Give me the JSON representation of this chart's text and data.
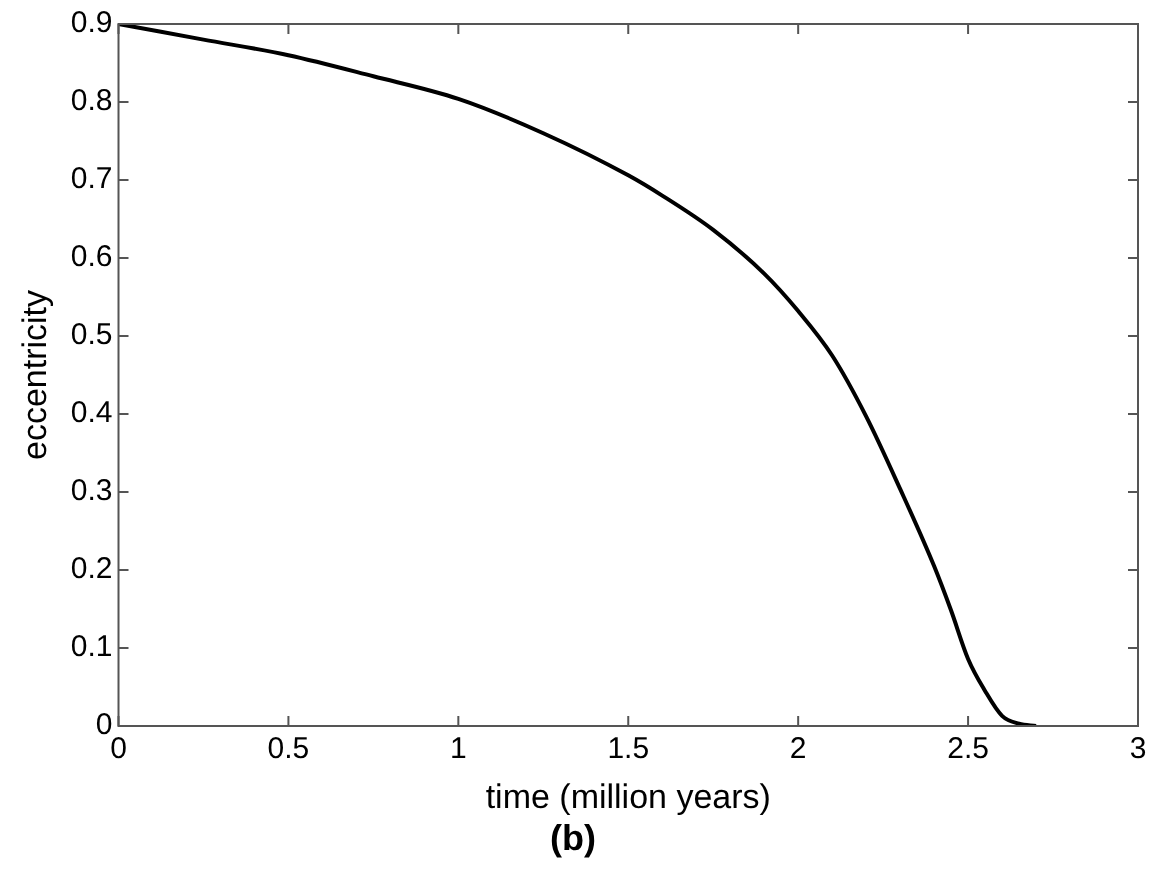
{
  "chart_data": {
    "type": "line",
    "title": "(b)",
    "xlabel": "time (million years)",
    "ylabel": "eccentricity",
    "x": [
      0,
      0.25,
      0.5,
      0.75,
      1,
      1.25,
      1.5,
      1.6,
      1.75,
      1.9,
      2,
      2.1,
      2.2,
      2.3,
      2.4,
      2.45,
      2.5,
      2.55,
      2.6,
      2.65,
      2.7
    ],
    "series": [
      {
        "color": "#000000",
        "values": [
          0.9,
          0.88,
          0.86,
          0.833,
          0.804,
          0.76,
          0.706,
          0.68,
          0.636,
          0.58,
          0.532,
          0.475,
          0.397,
          0.304,
          0.205,
          0.148,
          0.086,
          0.045,
          0.013,
          0.003,
          0
        ]
      }
    ],
    "xlim": [
      0,
      3
    ],
    "xticks": [
      0,
      0.5,
      1,
      1.5,
      2,
      2.5,
      3
    ],
    "ylim": [
      0,
      0.9
    ],
    "yticks": [
      0,
      0.1,
      0.2,
      0.3,
      0.4,
      0.5,
      0.6,
      0.7,
      0.8,
      0.9
    ],
    "grid": false,
    "legend": false,
    "marker": "none",
    "line_style": "solid"
  }
}
